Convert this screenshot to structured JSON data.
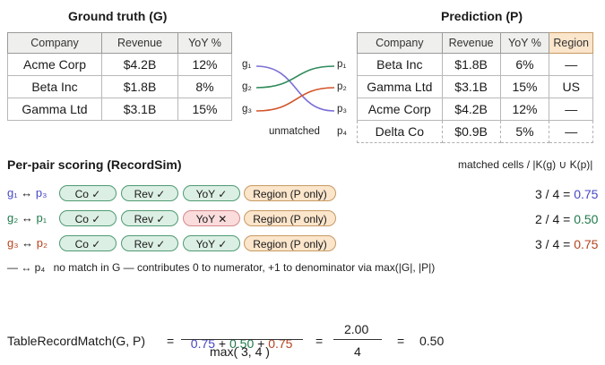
{
  "gt": {
    "title": "Ground truth (G)",
    "headers": [
      "Company",
      "Revenue",
      "YoY %"
    ],
    "rows": [
      [
        "Acme Corp",
        "$4.2B",
        "12%"
      ],
      [
        "Beta Inc",
        "$1.8B",
        "8%"
      ],
      [
        "Gamma Ltd",
        "$3.1B",
        "15%"
      ]
    ]
  },
  "pred": {
    "title": "Prediction (P)",
    "headers": [
      "Company",
      "Revenue",
      "YoY %",
      "Region"
    ],
    "rows": [
      [
        "Beta Inc",
        "$1.8B",
        "6%",
        "—"
      ],
      [
        "Gamma Ltd",
        "$3.1B",
        "15%",
        "US"
      ],
      [
        "Acme Corp",
        "$4.2B",
        "12%",
        "—"
      ],
      [
        "Delta Co",
        "$0.9B",
        "5%",
        "—"
      ]
    ]
  },
  "labels": {
    "g": [
      "g₁",
      "g₂",
      "g₃"
    ],
    "p": [
      "p₁",
      "p₂",
      "p₃"
    ],
    "unmatched": "unmatched",
    "p4": "p₄"
  },
  "colors": {
    "g1": "#7b6fd6",
    "g2": "#2e8a5a",
    "g3": "#d2542a"
  },
  "scoring": {
    "title": "Per-pair scoring (RecordSim)",
    "right_header": "matched cells / |K(g) ∪ K(p)|",
    "pairs": [
      {
        "g": "g₁",
        "arrow": "↔",
        "p": "p₃",
        "pills": [
          "Co ✓",
          "Rev ✓",
          "YoY ✓",
          "Region (P only)"
        ],
        "frac": "3 / 4 =",
        "value": "0.75"
      },
      {
        "g": "g₂",
        "arrow": "↔",
        "p": "p₁",
        "pills": [
          "Co ✓",
          "Rev ✓",
          "YoY ✕",
          "Region (P only)"
        ],
        "frac": "2 / 4 =",
        "value": "0.50"
      },
      {
        "g": "g₃",
        "arrow": "↔",
        "p": "p₂",
        "pills": [
          "Co ✓",
          "Rev ✓",
          "YoY ✓",
          "Region (P only)"
        ],
        "frac": "3 / 4 =",
        "value": "0.75"
      }
    ],
    "unmatched_line": {
      "prefix": "— ↔ p₄",
      "text": "no match in G — contributes 0 to numerator, +1 to denominator via max(|G|, |P|)"
    }
  },
  "formula": {
    "lhs": "TableRecordMatch(G, P)",
    "eq": "=",
    "num_a": "0.75",
    "plus1": " + ",
    "num_b": "0.50",
    "plus2": " + ",
    "num_c": "0.75",
    "den": "max( 3, 4 )",
    "eq2": "=",
    "num2": "2.00",
    "den2": "4",
    "eq3": "=",
    "result": "0.50"
  }
}
